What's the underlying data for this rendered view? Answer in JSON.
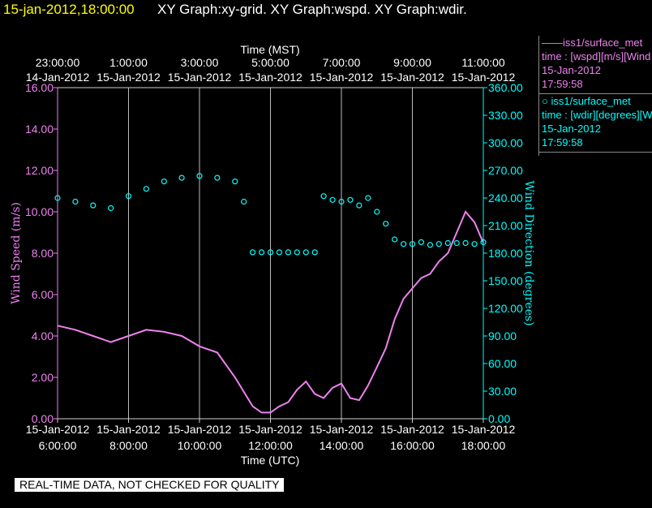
{
  "header": {
    "timestamp": "15-jan-2012,18:00:00",
    "title": "XY Graph:xy-grid.  XY Graph:wspd.  XY Graph:wdir."
  },
  "legend": [
    {
      "line1": "——iss1/surface_met",
      "line2": "time : [wspd][m/s][Wind",
      "line3": "15-Jan-2012",
      "line4": "17:59:58",
      "color": "#ee82ee"
    },
    {
      "line1": "○ iss1/surface_met",
      "line2": "time : [wdir][degrees][Wi",
      "line3": "15-Jan-2012",
      "line4": "17:59:58",
      "color": "#00ffff"
    }
  ],
  "footer_note": "REAL-TIME DATA, NOT CHECKED FOR QUALITY",
  "chart_data": {
    "type": "line",
    "top_axis": {
      "label": "Time (MST)",
      "ticks": [
        {
          "time": "23:00:00",
          "date": "14-Jan-2012"
        },
        {
          "time": "1:00:00",
          "date": "15-Jan-2012"
        },
        {
          "time": "3:00:00",
          "date": "15-Jan-2012"
        },
        {
          "time": "5:00:00",
          "date": "15-Jan-2012"
        },
        {
          "time": "7:00:00",
          "date": "15-Jan-2012"
        },
        {
          "time": "9:00:00",
          "date": "15-Jan-2012"
        },
        {
          "time": "11:00:00",
          "date": "15-Jan-2012"
        }
      ]
    },
    "bottom_axis": {
      "label": "Time (UTC)",
      "ticks": [
        {
          "date": "15-Jan-2012",
          "time": "6:00:00"
        },
        {
          "date": "15-Jan-2012",
          "time": "8:00:00"
        },
        {
          "date": "15-Jan-2012",
          "time": "10:00:00"
        },
        {
          "date": "15-Jan-2012",
          "time": "12:00:00"
        },
        {
          "date": "15-Jan-2012",
          "time": "14:00:00"
        },
        {
          "date": "15-Jan-2012",
          "time": "16:00:00"
        },
        {
          "date": "15-Jan-2012",
          "time": "18:00:00"
        }
      ]
    },
    "x_range_utc_hours": [
      6,
      18
    ],
    "left_axis": {
      "label": "Wind Speed (m/s)",
      "ylim": [
        0,
        16
      ],
      "ticks": [
        "0.00",
        "2.00",
        "4.00",
        "6.00",
        "8.00",
        "10.00",
        "12.00",
        "14.00",
        "16.00"
      ],
      "color": "#ee82ee"
    },
    "right_axis": {
      "label": "Wind Direction (degrees)",
      "ylim": [
        0,
        360
      ],
      "ticks": [
        "0.00",
        "30.00",
        "60.00",
        "90.00",
        "120.00",
        "150.00",
        "180.00",
        "210.00",
        "240.00",
        "270.00",
        "300.00",
        "330.00",
        "360.00"
      ],
      "color": "#00ffff"
    },
    "grid": true,
    "series": [
      {
        "name": "iss1/surface_met wspd",
        "style": "line",
        "color": "#ee82ee",
        "x_utc_hours": [
          6.0,
          6.5,
          7.0,
          7.5,
          8.0,
          8.5,
          9.0,
          9.5,
          10.0,
          10.5,
          11.0,
          11.25,
          11.5,
          11.75,
          12.0,
          12.25,
          12.5,
          12.75,
          13.0,
          13.25,
          13.5,
          13.75,
          14.0,
          14.25,
          14.5,
          14.75,
          15.0,
          15.25,
          15.5,
          15.75,
          16.0,
          16.25,
          16.5,
          16.75,
          17.0,
          17.25,
          17.5,
          17.75,
          18.0
        ],
        "y": [
          4.5,
          4.3,
          4.0,
          3.7,
          4.0,
          4.3,
          4.2,
          4.0,
          3.5,
          3.2,
          2.0,
          1.3,
          0.6,
          0.3,
          0.3,
          0.6,
          0.8,
          1.4,
          1.8,
          1.2,
          1.0,
          1.5,
          1.7,
          1.0,
          0.9,
          1.6,
          2.5,
          3.4,
          4.8,
          5.8,
          6.3,
          6.8,
          7.0,
          7.6,
          8.0,
          9.0,
          10.0,
          9.5,
          8.5
        ]
      },
      {
        "name": "iss1/surface_met wdir",
        "style": "scatter",
        "color": "#00ffff",
        "x_utc_hours": [
          6.0,
          6.5,
          7.0,
          7.5,
          8.0,
          8.5,
          9.0,
          9.5,
          10.0,
          10.5,
          11.0,
          11.25,
          11.5,
          11.75,
          12.0,
          12.25,
          12.5,
          12.75,
          13.0,
          13.25,
          13.5,
          13.75,
          14.0,
          14.25,
          14.5,
          14.75,
          15.0,
          15.25,
          15.5,
          15.75,
          16.0,
          16.25,
          16.5,
          16.75,
          17.0,
          17.25,
          17.5,
          17.75,
          18.0
        ],
        "y": [
          240,
          236,
          232,
          229,
          242,
          250,
          258,
          262,
          264,
          262,
          258,
          236,
          181,
          181,
          181,
          181,
          181,
          181,
          181,
          181,
          242,
          238,
          236,
          238,
          232,
          240,
          225,
          212,
          195,
          190,
          190,
          192,
          189,
          190,
          191,
          191,
          191,
          190,
          192
        ]
      }
    ]
  }
}
